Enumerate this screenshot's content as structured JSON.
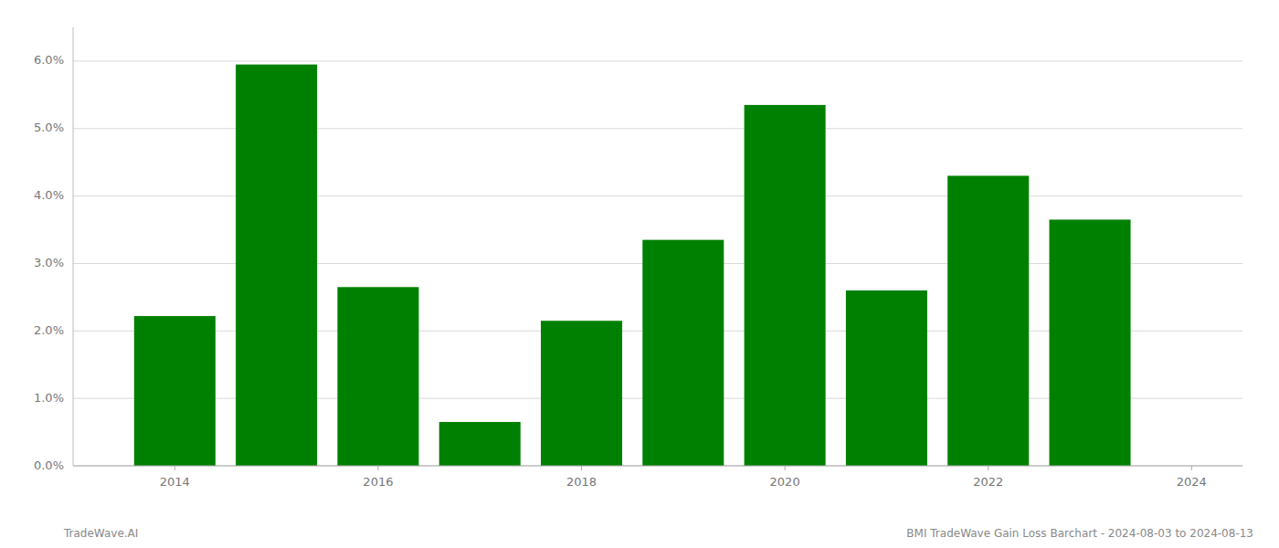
{
  "chart_data": {
    "type": "bar",
    "x": [
      2014,
      2015,
      2016,
      2017,
      2018,
      2019,
      2020,
      2021,
      2022,
      2023
    ],
    "values": [
      0.0222,
      0.0595,
      0.0265,
      0.0065,
      0.0215,
      0.0335,
      0.0535,
      0.026,
      0.043,
      0.0365
    ],
    "color": "#008000",
    "xlim": [
      2013.0,
      2024.5
    ],
    "xticks": [
      2014,
      2016,
      2018,
      2020,
      2022,
      2024
    ],
    "ylim": [
      0.0,
      0.065
    ],
    "yticks": [
      {
        "value": 0.0,
        "label": "0.0%"
      },
      {
        "value": 0.01,
        "label": "1.0%"
      },
      {
        "value": 0.02,
        "label": "2.0%"
      },
      {
        "value": 0.03,
        "label": "3.0%"
      },
      {
        "value": 0.04,
        "label": "4.0%"
      },
      {
        "value": 0.05,
        "label": "5.0%"
      },
      {
        "value": 0.06,
        "label": "6.0%"
      }
    ],
    "grid": true,
    "annotations": [
      "TradeWave.AI",
      "BMI TradeWave Gain Loss Barchart - 2024-08-03 to 2024-08-13"
    ]
  }
}
